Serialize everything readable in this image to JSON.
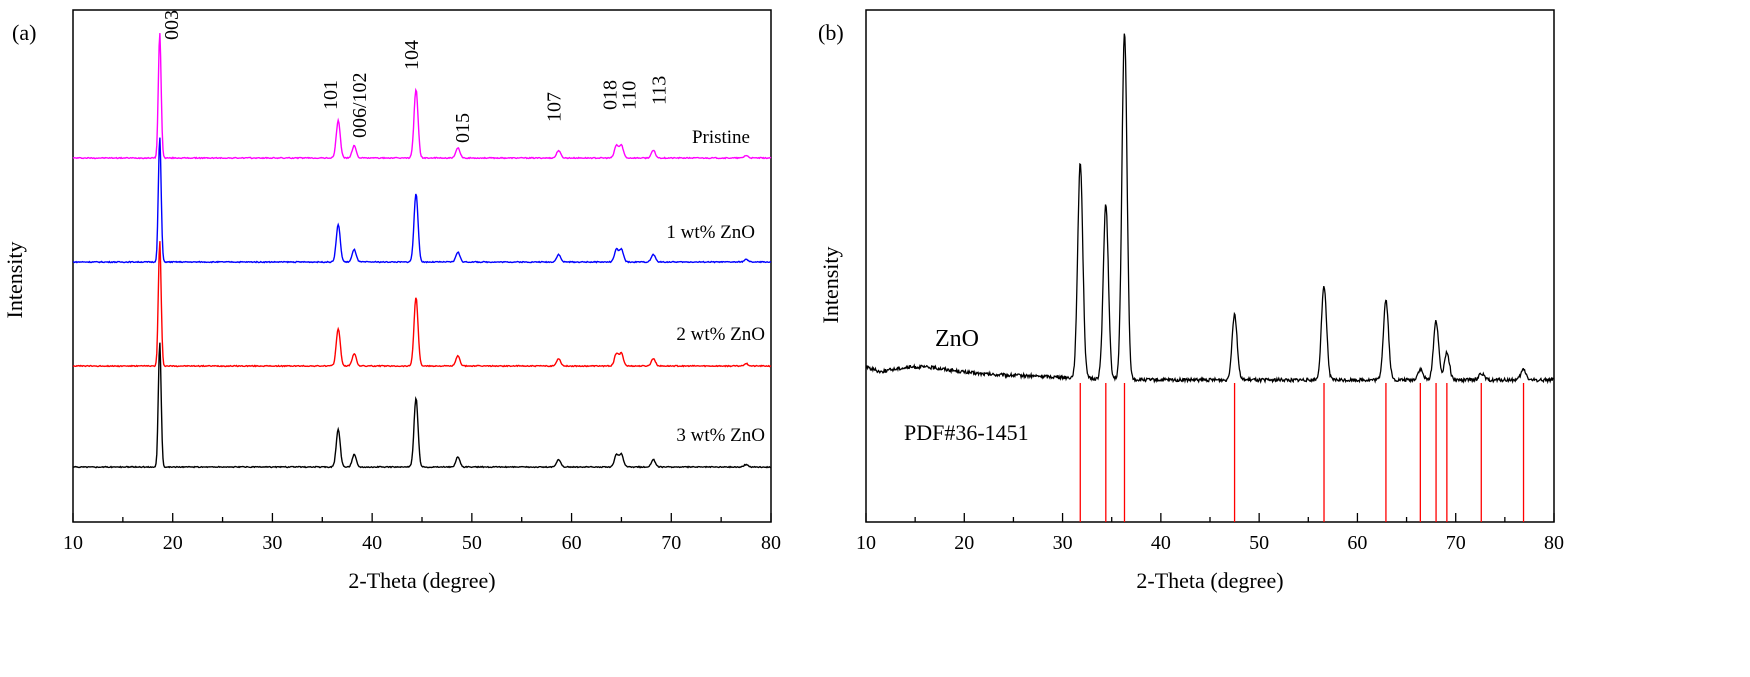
{
  "chart_data": [
    {
      "panel_label": "(a)",
      "type": "line",
      "title": "",
      "xlabel": "2-Theta (degree)",
      "ylabel": "Intensity",
      "xlim": [
        10,
        80
      ],
      "xticks": [
        "10",
        "20",
        "30",
        "40",
        "50",
        "60",
        "70",
        "80"
      ],
      "y_ticks_shown": false,
      "peak_positions": [
        18.7,
        36.6,
        38.2,
        44.4,
        48.6,
        58.7,
        64.5,
        65.0,
        68.2,
        77.5
      ],
      "series": [
        {
          "name": "Pristine",
          "color": "#ff00ff",
          "peak_heights": [
            100,
            30,
            10,
            55,
            8,
            6,
            10,
            10,
            6,
            2
          ]
        },
        {
          "name": "1 wt% ZnO",
          "color": "#0000ff",
          "peak_heights": [
            100,
            30,
            10,
            55,
            8,
            6,
            10,
            10,
            6,
            2
          ]
        },
        {
          "name": "2 wt% ZnO",
          "color": "#ff0000",
          "peak_heights": [
            100,
            30,
            10,
            55,
            8,
            6,
            10,
            10,
            6,
            2
          ]
        },
        {
          "name": "3 wt% ZnO",
          "color": "#000000",
          "peak_heights": [
            100,
            30,
            10,
            55,
            8,
            6,
            10,
            10,
            6,
            2
          ]
        }
      ],
      "peak_labels": [
        {
          "text": "003",
          "x": 18.7
        },
        {
          "text": "101",
          "x": 36.6
        },
        {
          "text": "006/102",
          "x": 38.2
        },
        {
          "text": "104",
          "x": 44.4
        },
        {
          "text": "015",
          "x": 48.6
        },
        {
          "text": "107",
          "x": 58.7
        },
        {
          "text": "018",
          "x": 64.5
        },
        {
          "text": "110",
          "x": 65.0
        },
        {
          "text": "113",
          "x": 68.2
        }
      ]
    },
    {
      "panel_label": "(b)",
      "type": "line",
      "title": "",
      "xlabel": "2-Theta (degree)",
      "ylabel": "Intensity",
      "xlim": [
        10,
        80
      ],
      "xticks": [
        "10",
        "20",
        "30",
        "40",
        "50",
        "60",
        "70",
        "80"
      ],
      "y_ticks_shown": false,
      "series": [
        {
          "name": "ZnO",
          "color": "#000000",
          "peaks": [
            {
              "x": 31.8,
              "height": 62
            },
            {
              "x": 34.4,
              "height": 50
            },
            {
              "x": 36.3,
              "height": 100
            },
            {
              "x": 47.5,
              "height": 19
            },
            {
              "x": 56.6,
              "height": 27
            },
            {
              "x": 62.9,
              "height": 23
            },
            {
              "x": 66.4,
              "height": 3
            },
            {
              "x": 68.0,
              "height": 17
            },
            {
              "x": 69.1,
              "height": 8
            },
            {
              "x": 72.6,
              "height": 2
            },
            {
              "x": 76.9,
              "height": 3
            }
          ]
        }
      ],
      "reference": {
        "name": "PDF#36-1451",
        "color": "#ff0000",
        "positions": [
          31.8,
          34.4,
          36.3,
          47.5,
          56.6,
          62.9,
          66.4,
          68.0,
          69.1,
          72.6,
          76.9
        ]
      }
    }
  ]
}
